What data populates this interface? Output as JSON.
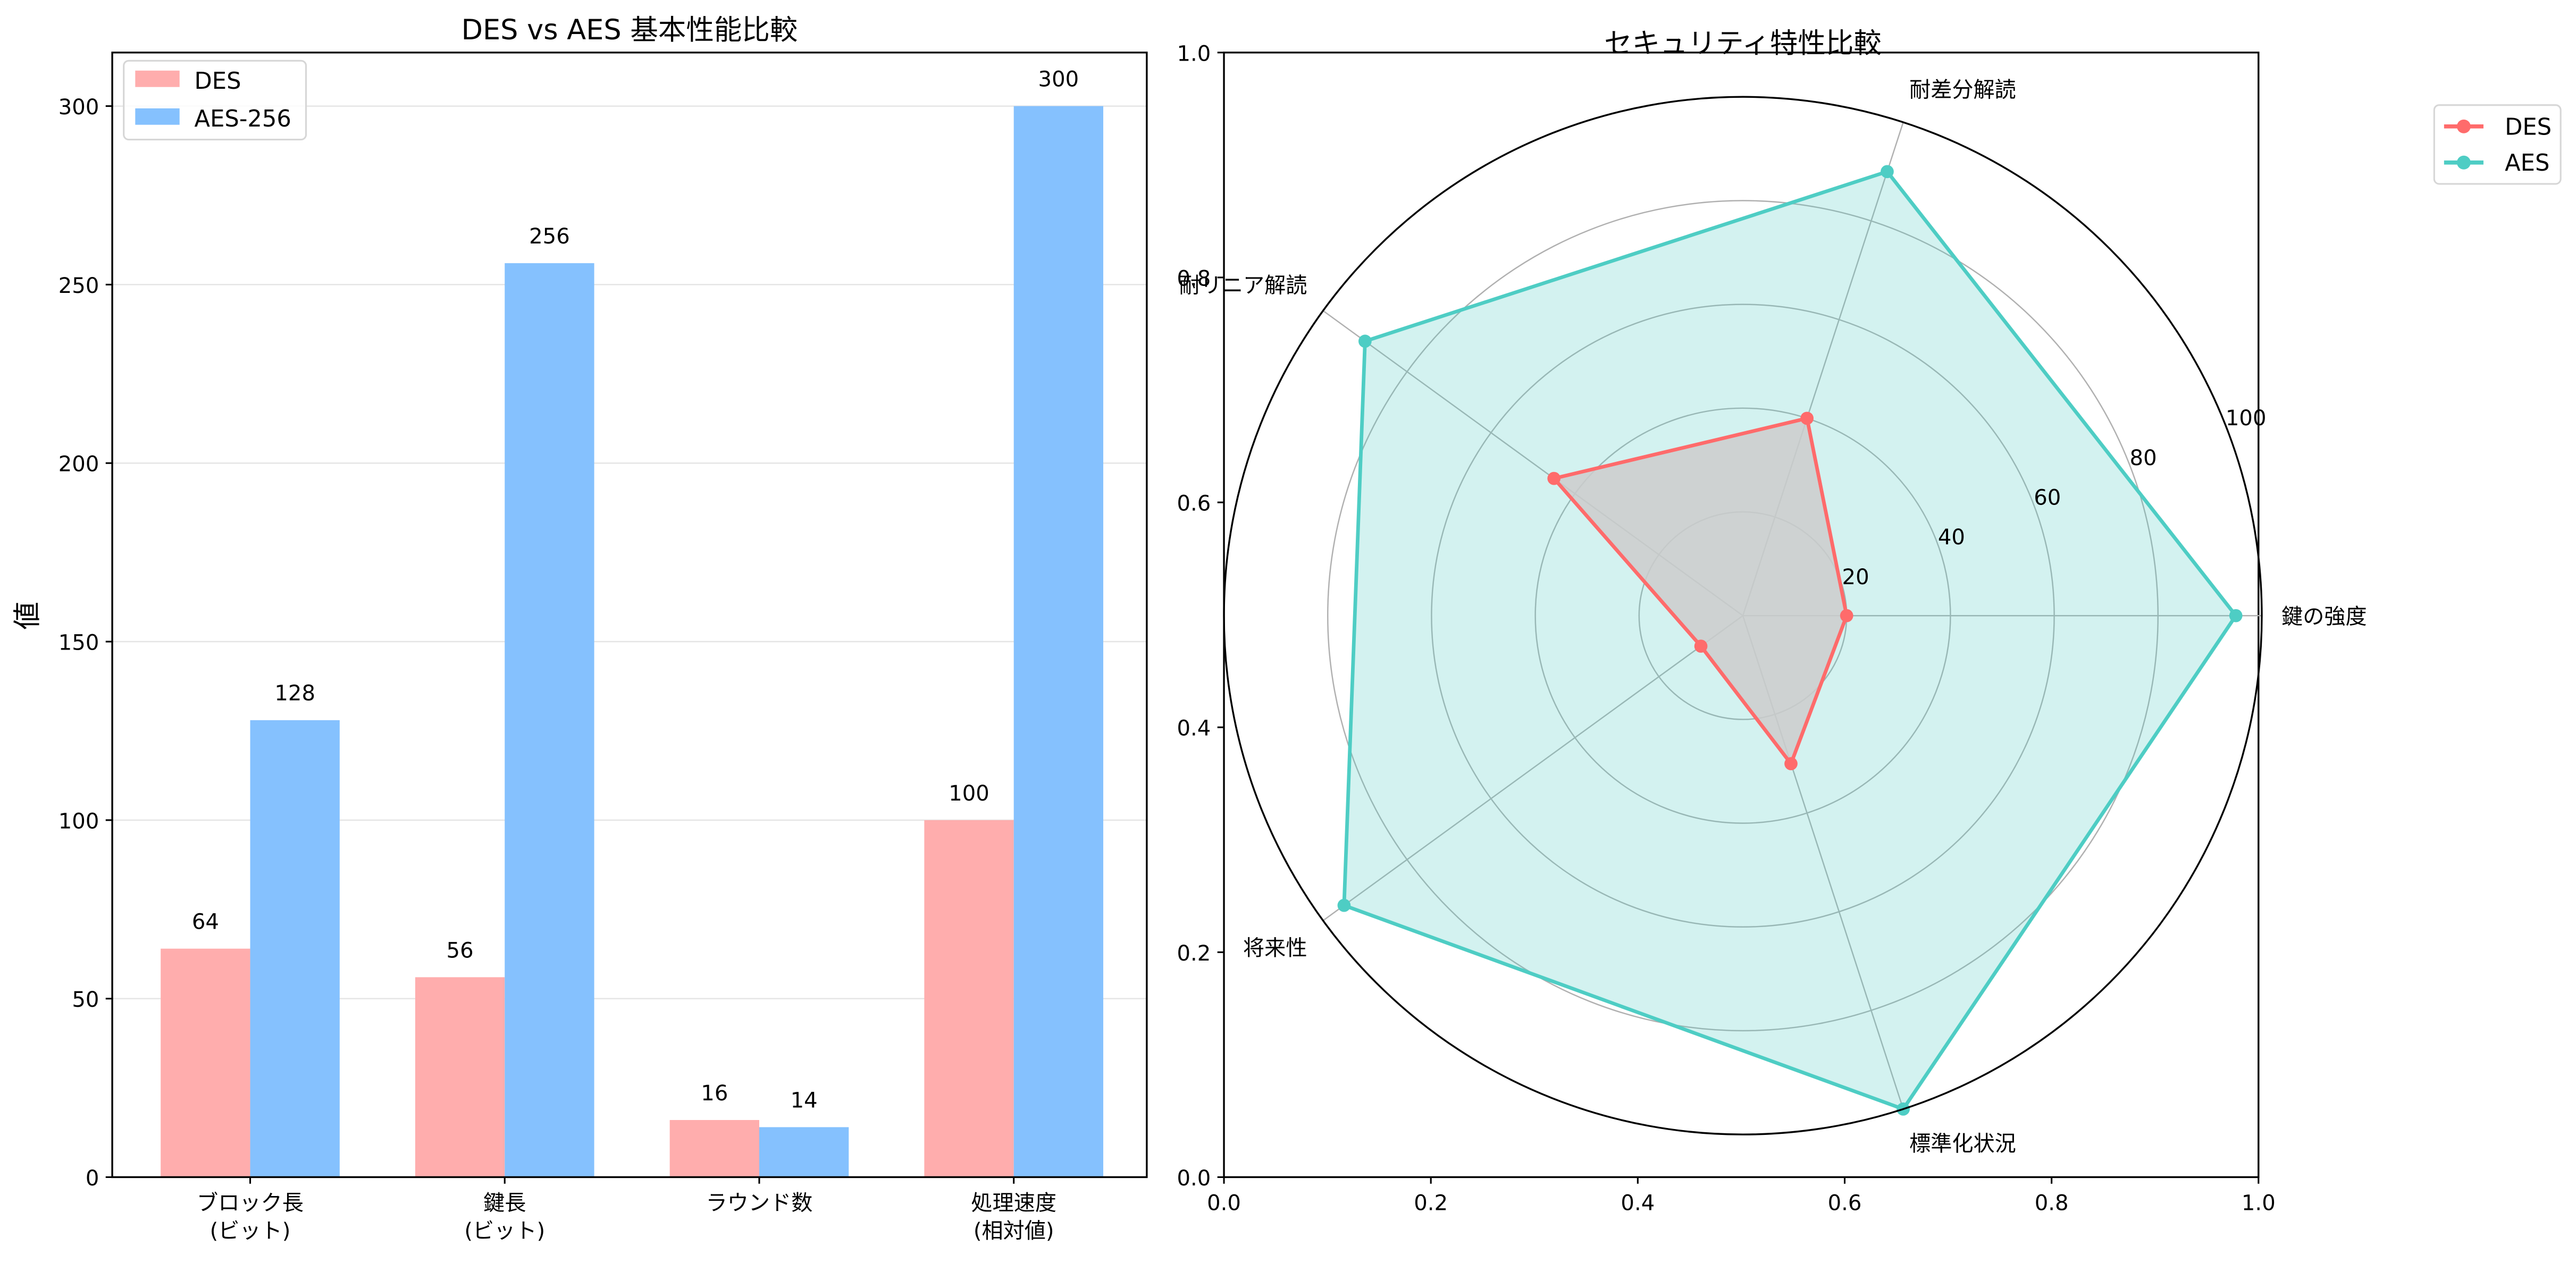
{
  "figure": {
    "background": "#ffffff"
  },
  "chart_data": [
    {
      "type": "bar",
      "title": "DES vs AES 基本性能比較",
      "xlabel": "",
      "ylabel": "値",
      "categories": [
        "ブロック長\n(ビット)",
        "鍵長\n(ビット)",
        "ラウンド数",
        "処理速度\n(相対値)"
      ],
      "series": [
        {
          "name": "DES",
          "values": [
            64,
            56,
            16,
            100
          ],
          "color": "#ffadad"
        },
        {
          "name": "AES-256",
          "values": [
            128,
            256,
            14,
            300
          ],
          "color": "#85c1fe"
        }
      ],
      "ylim": [
        0,
        315
      ],
      "yticks": [
        0,
        50,
        100,
        150,
        200,
        250,
        300
      ],
      "grid": "y",
      "legend_position": "upper left",
      "data_labels": true
    },
    {
      "type": "radar",
      "title": "セキュリティ特性比較",
      "categories": [
        "鍵の強度",
        "耐差分解読",
        "耐リニア解読",
        "将来性",
        "標準化状況"
      ],
      "series": [
        {
          "name": "DES",
          "values": [
            20,
            40,
            45,
            10,
            30
          ],
          "color": "#ff6b6b",
          "fill": "#cccccc"
        },
        {
          "name": "AES",
          "values": [
            95,
            90,
            90,
            95,
            100
          ],
          "color": "#4ecdc4",
          "fill": "#4ecdc4"
        }
      ],
      "rlim": [
        0,
        100
      ],
      "rticks": [
        20,
        40,
        60,
        80,
        100
      ],
      "frame_xticks": [
        "0.0",
        "0.2",
        "0.4",
        "0.6",
        "0.8",
        "1.0"
      ],
      "frame_yticks": [
        "0.0",
        "0.2",
        "0.4",
        "0.6",
        "0.8",
        "1.0"
      ],
      "legend_position": "upper right outside"
    }
  ]
}
